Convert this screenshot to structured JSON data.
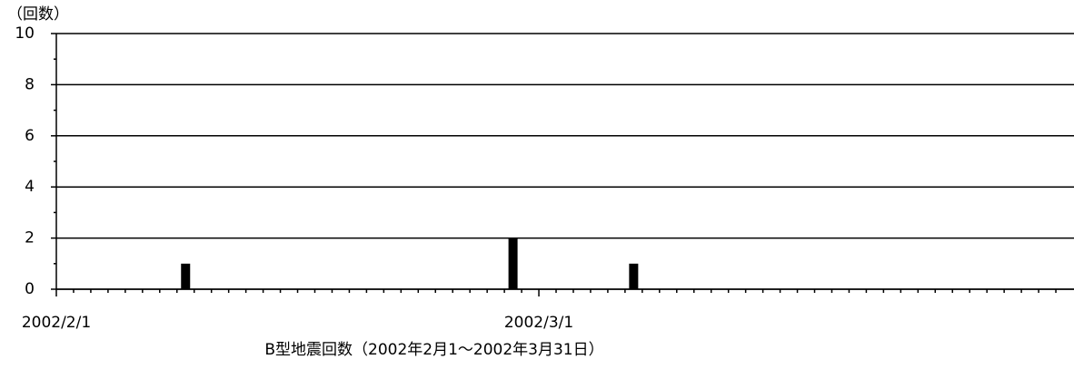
{
  "chart_data": {
    "type": "bar",
    "title": "B型地震回数（2002年2月1～2002年3月31日）",
    "y_label": "（回数）",
    "categories": [
      "2002/2/1",
      null,
      null,
      null,
      null,
      null,
      null,
      null,
      null,
      null,
      null,
      null,
      null,
      null,
      null,
      null,
      null,
      null,
      null,
      null,
      null,
      null,
      null,
      null,
      null,
      null,
      null,
      null,
      "2002/3/1",
      null,
      null,
      null,
      null,
      null,
      null,
      null,
      null,
      null,
      null,
      null,
      null,
      null,
      null,
      null,
      null,
      null,
      null,
      null,
      null,
      null,
      null,
      null,
      null,
      null,
      null,
      null,
      null,
      null,
      null
    ],
    "values": [
      0,
      0,
      0,
      0,
      0,
      0,
      0,
      1,
      0,
      0,
      0,
      0,
      0,
      0,
      0,
      0,
      0,
      0,
      0,
      0,
      0,
      0,
      0,
      0,
      0,
      0,
      2,
      0,
      0,
      0,
      0,
      0,
      0,
      1,
      0,
      0,
      0,
      0,
      0,
      0,
      0,
      0,
      0,
      0,
      0,
      0,
      0,
      0,
      0,
      0,
      0,
      0,
      0,
      0,
      0,
      0,
      0,
      0,
      0
    ],
    "color": "#000000",
    "ylim": [
      0,
      10
    ],
    "yticks": [
      0,
      2,
      4,
      6,
      8,
      10
    ],
    "grid": true
  }
}
